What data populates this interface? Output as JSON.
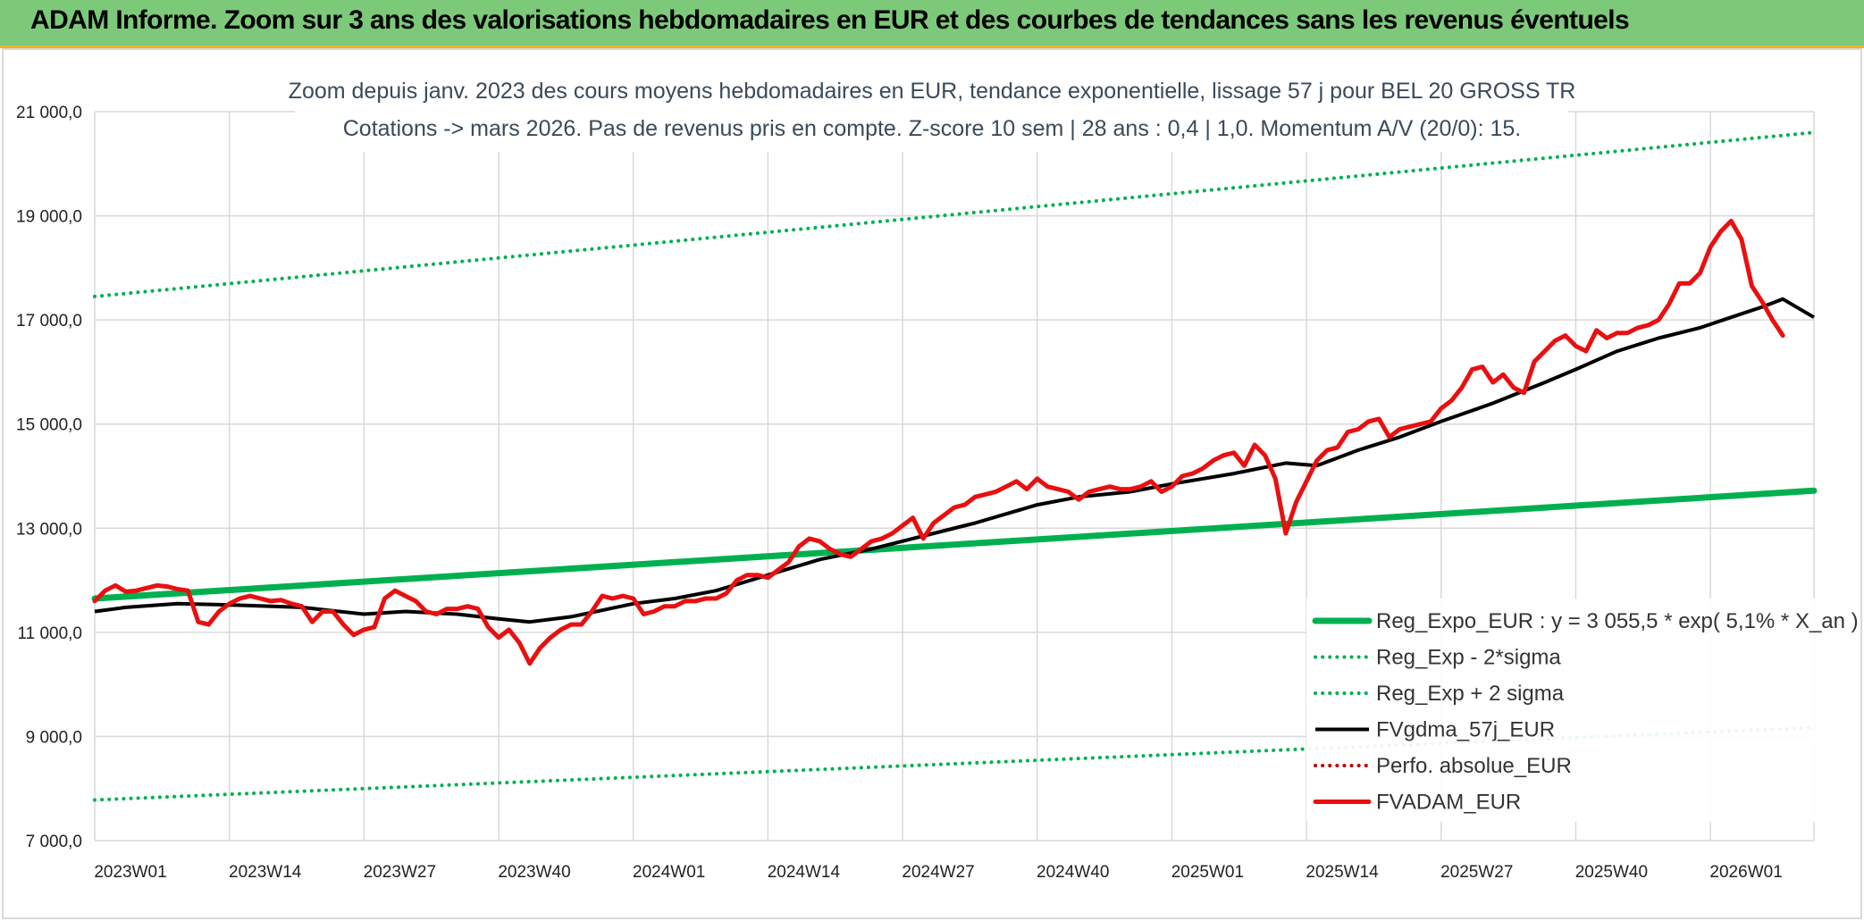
{
  "header": {
    "title": "ADAM Informe. Zoom sur 3 ans des valorisations hebdomadaires en EUR et des courbes de tendances sans les revenus éventuels"
  },
  "chart_data": {
    "type": "line",
    "title_line1": "Zoom depuis janv. 2023 des cours moyens hebdomadaires en EUR, tendance exponentielle, lissage 57 j pour BEL 20 GROSS TR",
    "title_line2": "Cotations -> mars 2026. Pas de revenus pris en compte. Z-score 10 sem | 28 ans : 0,4 | 1,0. Momentum A/V (20/0): 15.",
    "ylim": [
      7000,
      21000
    ],
    "yticks": [
      "21 000,0",
      "19 000,0",
      "17 000,0",
      "15 000,0",
      "13 000,0",
      "11 000,0",
      "9 000,0",
      "7 000,0"
    ],
    "ytick_values": [
      21000,
      19000,
      17000,
      15000,
      13000,
      11000,
      9000,
      7000
    ],
    "xlim": [
      0,
      166
    ],
    "xticks": [
      "2023W01",
      "2023W14",
      "2023W27",
      "2023W40",
      "2024W01",
      "2024W14",
      "2024W27",
      "2024W40",
      "2025W01",
      "2025W14",
      "2025W27",
      "2025W40",
      "2026W01"
    ],
    "xtick_positions": [
      0,
      13,
      26,
      39,
      52,
      65,
      78,
      91,
      104,
      117,
      130,
      143,
      156
    ],
    "grid": true,
    "legend_position": "bottom-right",
    "colors": {
      "reg_expo": "#00b050",
      "reg_minus": "#00b050",
      "reg_plus": "#00b050",
      "fvgdma": "#000000",
      "perfo": "#c00000",
      "fvadam": "#e81010",
      "grid": "#d9d9d9",
      "banner": "#7dc97a"
    },
    "series": [
      {
        "name": "Reg_Expo_EUR : y = 3 055,5 * exp( 5,1% *  X_an )",
        "style": "solid-thick",
        "key": "reg_expo",
        "points": [
          [
            0,
            11650
          ],
          [
            166,
            13720
          ]
        ]
      },
      {
        "name": "Reg_Exp - 2*sigma",
        "style": "dotted",
        "key": "reg_minus",
        "points": [
          [
            0,
            7780
          ],
          [
            166,
            9170
          ]
        ]
      },
      {
        "name": "Reg_Exp + 2 sigma",
        "style": "dotted",
        "key": "reg_plus",
        "points": [
          [
            0,
            17450
          ],
          [
            166,
            20600
          ]
        ]
      },
      {
        "name": "FVgdma_57j_EUR",
        "style": "solid",
        "key": "fvgdma",
        "points": [
          [
            0,
            11400
          ],
          [
            3,
            11480
          ],
          [
            8,
            11550
          ],
          [
            14,
            11520
          ],
          [
            20,
            11480
          ],
          [
            26,
            11350
          ],
          [
            30,
            11400
          ],
          [
            35,
            11350
          ],
          [
            39,
            11260
          ],
          [
            42,
            11200
          ],
          [
            46,
            11300
          ],
          [
            52,
            11550
          ],
          [
            56,
            11650
          ],
          [
            60,
            11800
          ],
          [
            65,
            12100
          ],
          [
            70,
            12400
          ],
          [
            75,
            12600
          ],
          [
            80,
            12850
          ],
          [
            85,
            13100
          ],
          [
            91,
            13450
          ],
          [
            95,
            13600
          ],
          [
            100,
            13700
          ],
          [
            104,
            13850
          ],
          [
            110,
            14050
          ],
          [
            115,
            14250
          ],
          [
            118,
            14200
          ],
          [
            122,
            14500
          ],
          [
            126,
            14750
          ],
          [
            130,
            15050
          ],
          [
            135,
            15400
          ],
          [
            140,
            15800
          ],
          [
            143,
            16050
          ],
          [
            147,
            16400
          ],
          [
            151,
            16650
          ],
          [
            155,
            16850
          ],
          [
            158,
            17050
          ],
          [
            161,
            17250
          ],
          [
            163,
            17400
          ],
          [
            166,
            17050
          ]
        ]
      },
      {
        "name": "Perfo. absolue_EUR",
        "style": "dotted",
        "key": "perfo",
        "points": []
      },
      {
        "name": "FVADAM_EUR",
        "style": "solid-thick",
        "key": "fvadam",
        "points": [
          [
            0,
            11600
          ],
          [
            1,
            11800
          ],
          [
            2,
            11900
          ],
          [
            3,
            11780
          ],
          [
            4,
            11800
          ],
          [
            5,
            11850
          ],
          [
            6,
            11900
          ],
          [
            7,
            11880
          ],
          [
            8,
            11830
          ],
          [
            9,
            11800
          ],
          [
            10,
            11200
          ],
          [
            11,
            11150
          ],
          [
            12,
            11400
          ],
          [
            13,
            11550
          ],
          [
            14,
            11650
          ],
          [
            15,
            11700
          ],
          [
            16,
            11650
          ],
          [
            17,
            11600
          ],
          [
            18,
            11620
          ],
          [
            19,
            11550
          ],
          [
            20,
            11500
          ],
          [
            21,
            11200
          ],
          [
            22,
            11400
          ],
          [
            23,
            11400
          ],
          [
            24,
            11150
          ],
          [
            25,
            10950
          ],
          [
            26,
            11050
          ],
          [
            27,
            11100
          ],
          [
            28,
            11650
          ],
          [
            29,
            11800
          ],
          [
            30,
            11700
          ],
          [
            31,
            11600
          ],
          [
            32,
            11400
          ],
          [
            33,
            11350
          ],
          [
            34,
            11450
          ],
          [
            35,
            11450
          ],
          [
            36,
            11500
          ],
          [
            37,
            11450
          ],
          [
            38,
            11100
          ],
          [
            39,
            10900
          ],
          [
            40,
            11050
          ],
          [
            41,
            10800
          ],
          [
            42,
            10400
          ],
          [
            43,
            10700
          ],
          [
            44,
            10900
          ],
          [
            45,
            11050
          ],
          [
            46,
            11150
          ],
          [
            47,
            11150
          ],
          [
            48,
            11400
          ],
          [
            49,
            11700
          ],
          [
            50,
            11650
          ],
          [
            51,
            11700
          ],
          [
            52,
            11650
          ],
          [
            53,
            11350
          ],
          [
            54,
            11400
          ],
          [
            55,
            11500
          ],
          [
            56,
            11500
          ],
          [
            57,
            11600
          ],
          [
            58,
            11600
          ],
          [
            59,
            11650
          ],
          [
            60,
            11650
          ],
          [
            61,
            11750
          ],
          [
            62,
            12000
          ],
          [
            63,
            12100
          ],
          [
            64,
            12100
          ],
          [
            65,
            12050
          ],
          [
            66,
            12200
          ],
          [
            67,
            12350
          ],
          [
            68,
            12650
          ],
          [
            69,
            12800
          ],
          [
            70,
            12750
          ],
          [
            71,
            12600
          ],
          [
            72,
            12500
          ],
          [
            73,
            12450
          ],
          [
            74,
            12600
          ],
          [
            75,
            12750
          ],
          [
            76,
            12800
          ],
          [
            77,
            12900
          ],
          [
            78,
            13050
          ],
          [
            79,
            13200
          ],
          [
            80,
            12800
          ],
          [
            81,
            13100
          ],
          [
            82,
            13250
          ],
          [
            83,
            13400
          ],
          [
            84,
            13450
          ],
          [
            85,
            13600
          ],
          [
            86,
            13650
          ],
          [
            87,
            13700
          ],
          [
            88,
            13800
          ],
          [
            89,
            13900
          ],
          [
            90,
            13750
          ],
          [
            91,
            13950
          ],
          [
            92,
            13800
          ],
          [
            93,
            13750
          ],
          [
            94,
            13700
          ],
          [
            95,
            13550
          ],
          [
            96,
            13700
          ],
          [
            97,
            13750
          ],
          [
            98,
            13800
          ],
          [
            99,
            13750
          ],
          [
            100,
            13750
          ],
          [
            101,
            13800
          ],
          [
            102,
            13900
          ],
          [
            103,
            13700
          ],
          [
            104,
            13800
          ],
          [
            105,
            14000
          ],
          [
            106,
            14050
          ],
          [
            107,
            14150
          ],
          [
            108,
            14300
          ],
          [
            109,
            14400
          ],
          [
            110,
            14450
          ],
          [
            111,
            14200
          ],
          [
            112,
            14600
          ],
          [
            113,
            14400
          ],
          [
            114,
            13950
          ],
          [
            115,
            12900
          ],
          [
            116,
            13500
          ],
          [
            117,
            13900
          ],
          [
            118,
            14300
          ],
          [
            119,
            14500
          ],
          [
            120,
            14550
          ],
          [
            121,
            14850
          ],
          [
            122,
            14900
          ],
          [
            123,
            15050
          ],
          [
            124,
            15100
          ],
          [
            125,
            14750
          ],
          [
            126,
            14900
          ],
          [
            127,
            14950
          ],
          [
            128,
            15000
          ],
          [
            129,
            15050
          ],
          [
            130,
            15300
          ],
          [
            131,
            15450
          ],
          [
            132,
            15700
          ],
          [
            133,
            16050
          ],
          [
            134,
            16100
          ],
          [
            135,
            15800
          ],
          [
            136,
            15950
          ],
          [
            137,
            15700
          ],
          [
            138,
            15600
          ],
          [
            139,
            16200
          ],
          [
            140,
            16400
          ],
          [
            141,
            16600
          ],
          [
            142,
            16700
          ],
          [
            143,
            16500
          ],
          [
            144,
            16400
          ],
          [
            145,
            16800
          ],
          [
            146,
            16650
          ],
          [
            147,
            16750
          ],
          [
            148,
            16750
          ],
          [
            149,
            16850
          ],
          [
            150,
            16900
          ],
          [
            151,
            17000
          ],
          [
            152,
            17300
          ],
          [
            153,
            17700
          ],
          [
            154,
            17700
          ],
          [
            155,
            17900
          ],
          [
            156,
            18400
          ],
          [
            157,
            18700
          ],
          [
            158,
            18900
          ],
          [
            159,
            18550
          ],
          [
            160,
            17650
          ],
          [
            161,
            17350
          ],
          [
            162,
            17000
          ],
          [
            163,
            16700
          ]
        ]
      }
    ]
  }
}
